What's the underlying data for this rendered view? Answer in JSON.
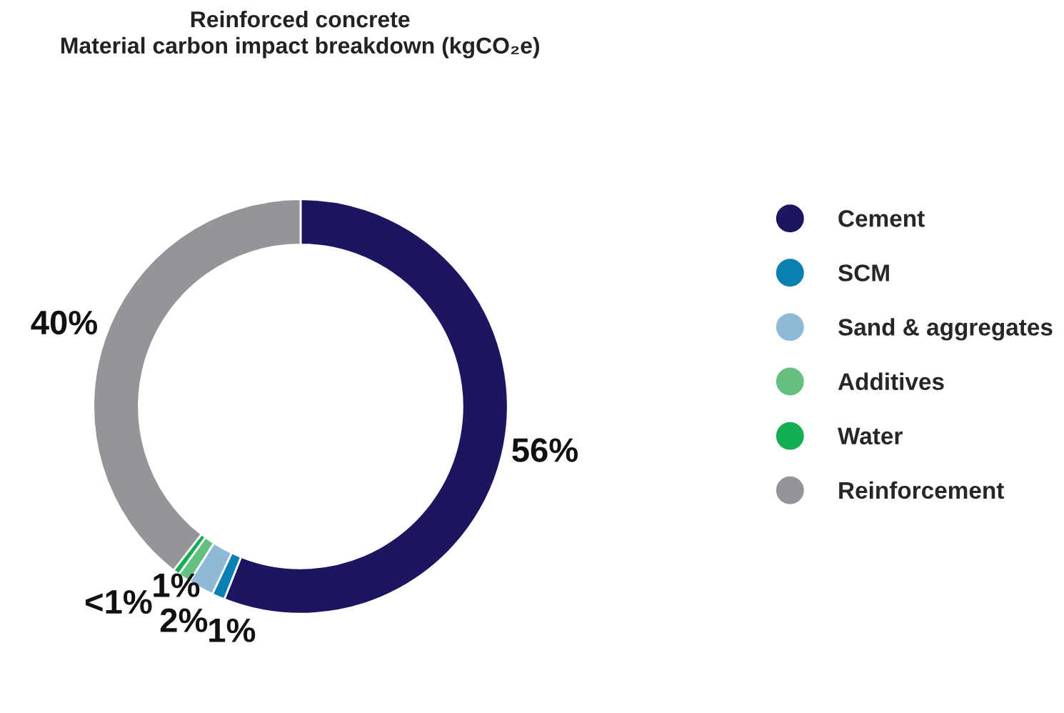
{
  "chart_data": {
    "type": "donut",
    "title": "Reinforced concrete\nMaterial carbon impact breakdown (kgCO₂e)",
    "categories": [
      "Cement",
      "SCM",
      "Sand & aggregates",
      "Additives",
      "Water",
      "Reinforcement"
    ],
    "values": [
      56,
      1,
      2,
      1,
      0.5,
      39.5
    ],
    "value_labels": [
      "56%",
      "1%",
      "2%",
      "1%",
      "<1%",
      "40%"
    ],
    "colors": [
      "#1c1660",
      "#0a80b0",
      "#8fb9d6",
      "#63c080",
      "#13ad52",
      "#939598"
    ],
    "legend": "right"
  }
}
